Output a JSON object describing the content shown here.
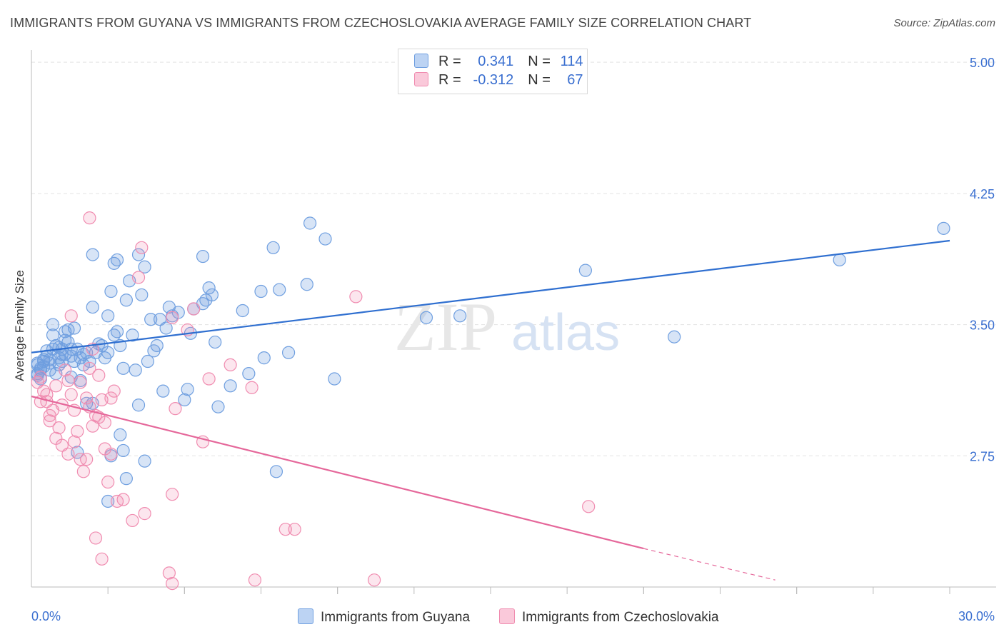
{
  "title": "IMMIGRANTS FROM GUYANA VS IMMIGRANTS FROM CZECHOSLOVAKIA AVERAGE FAMILY SIZE CORRELATION CHART",
  "source": "Source: ZipAtlas.com",
  "legend": {
    "r_label": "R =",
    "n_label": "N =",
    "rows": [
      {
        "r": "0.341",
        "n": "114",
        "color": "#6f9fe0"
      },
      {
        "r": "-0.312",
        "n": "67",
        "color": "#f08cb0"
      }
    ]
  },
  "watermark": {
    "zip": "ZIP",
    "atlas": "atlas"
  },
  "chart_data": {
    "type": "scatter",
    "ylabel": "Average Family Size",
    "x_tick_labels": [
      "0.0%",
      "30.0%"
    ],
    "y_tick_labels": [
      "5.00",
      "4.25",
      "3.50",
      "2.75"
    ],
    "xlim": [
      0,
      30
    ],
    "ylim": [
      2.0,
      5.07
    ],
    "grid": true,
    "series": [
      {
        "name": "Immigrants from Guyana",
        "color": "#6f9fe0",
        "trend": {
          "x": [
            0,
            30
          ],
          "y": [
            3.34,
            3.98
          ]
        },
        "points": [
          [
            0.2,
            3.28
          ],
          [
            0.3,
            3.25
          ],
          [
            0.2,
            3.22
          ],
          [
            0.4,
            3.29
          ],
          [
            0.5,
            3.35
          ],
          [
            0.6,
            3.3
          ],
          [
            0.4,
            3.26
          ],
          [
            0.3,
            3.24
          ],
          [
            0.7,
            3.44
          ],
          [
            0.8,
            3.38
          ],
          [
            0.9,
            3.27
          ],
          [
            1.0,
            3.33
          ],
          [
            1.1,
            3.41
          ],
          [
            1.2,
            3.47
          ],
          [
            1.3,
            3.32
          ],
          [
            1.4,
            3.29
          ],
          [
            0.7,
            3.5
          ],
          [
            0.9,
            3.37
          ],
          [
            1.1,
            3.46
          ],
          [
            1.5,
            3.36
          ],
          [
            1.6,
            3.31
          ],
          [
            1.7,
            3.27
          ],
          [
            1.8,
            3.34
          ],
          [
            0.5,
            3.32
          ],
          [
            0.6,
            3.24
          ],
          [
            0.8,
            3.22
          ],
          [
            1.0,
            3.36
          ],
          [
            1.2,
            3.4
          ],
          [
            1.4,
            3.48
          ],
          [
            1.6,
            3.18
          ],
          [
            1.9,
            3.29
          ],
          [
            2.0,
            3.6
          ],
          [
            2.1,
            3.34
          ],
          [
            2.3,
            3.38
          ],
          [
            2.4,
            3.31
          ],
          [
            2.5,
            3.55
          ],
          [
            2.6,
            3.69
          ],
          [
            2.7,
            3.44
          ],
          [
            2.8,
            3.46
          ],
          [
            2.9,
            3.38
          ],
          [
            3.0,
            3.25
          ],
          [
            3.1,
            3.64
          ],
          [
            3.2,
            3.75
          ],
          [
            3.3,
            3.44
          ],
          [
            3.4,
            3.24
          ],
          [
            3.5,
            3.9
          ],
          [
            3.6,
            3.67
          ],
          [
            3.7,
            3.83
          ],
          [
            3.8,
            3.29
          ],
          [
            3.9,
            3.53
          ],
          [
            4.0,
            3.35
          ],
          [
            4.1,
            3.38
          ],
          [
            4.2,
            3.53
          ],
          [
            4.3,
            3.12
          ],
          [
            4.5,
            3.6
          ],
          [
            4.6,
            3.55
          ],
          [
            4.8,
            3.57
          ],
          [
            5.0,
            3.07
          ],
          [
            5.2,
            3.45
          ],
          [
            5.3,
            3.59
          ],
          [
            5.6,
            3.62
          ],
          [
            5.7,
            3.64
          ],
          [
            5.8,
            3.71
          ],
          [
            5.9,
            3.67
          ],
          [
            2.0,
            3.9
          ],
          [
            2.7,
            3.85
          ],
          [
            2.8,
            3.87
          ],
          [
            5.6,
            3.89
          ],
          [
            6.0,
            3.4
          ],
          [
            6.5,
            3.15
          ],
          [
            6.9,
            3.58
          ],
          [
            7.1,
            3.22
          ],
          [
            7.5,
            3.69
          ],
          [
            7.6,
            3.31
          ],
          [
            7.9,
            3.94
          ],
          [
            8.1,
            3.7
          ],
          [
            8.4,
            3.34
          ],
          [
            9.1,
            4.08
          ],
          [
            9.0,
            3.73
          ],
          [
            9.6,
            3.99
          ],
          [
            9.9,
            3.19
          ],
          [
            14.0,
            3.55
          ],
          [
            12.9,
            3.54
          ],
          [
            18.1,
            3.81
          ],
          [
            21.0,
            3.43
          ],
          [
            26.4,
            3.87
          ],
          [
            29.8,
            4.05
          ],
          [
            1.5,
            2.77
          ],
          [
            2.6,
            2.75
          ],
          [
            2.9,
            2.87
          ],
          [
            3.1,
            2.62
          ],
          [
            3.0,
            2.78
          ],
          [
            3.7,
            2.72
          ],
          [
            2.5,
            2.49
          ],
          [
            8.0,
            2.66
          ],
          [
            6.1,
            3.03
          ],
          [
            2.0,
            3.05
          ],
          [
            2.5,
            3.34
          ],
          [
            3.5,
            3.04
          ],
          [
            1.8,
            3.05
          ],
          [
            0.3,
            3.19
          ],
          [
            0.2,
            3.27
          ],
          [
            1.3,
            3.2
          ],
          [
            0.9,
            3.31
          ],
          [
            1.1,
            3.33
          ],
          [
            0.6,
            3.28
          ],
          [
            1.7,
            3.33
          ],
          [
            2.2,
            3.39
          ],
          [
            4.4,
            3.48
          ],
          [
            5.1,
            3.13
          ],
          [
            0.4,
            3.3
          ],
          [
            0.7,
            3.36
          ],
          [
            0.2,
            3.21
          ],
          [
            1.0,
            3.29
          ],
          [
            1.3,
            3.36
          ]
        ]
      },
      {
        "name": "Immigrants from Czechoslovakia",
        "color": "#f08cb0",
        "trend": {
          "x": [
            0,
            20
          ],
          "y": [
            3.09,
            2.22
          ]
        },
        "trend_dashed": {
          "x": [
            20,
            24.3
          ],
          "y": [
            2.22,
            2.04
          ]
        },
        "points": [
          [
            0.2,
            3.17
          ],
          [
            0.3,
            3.2
          ],
          [
            0.4,
            3.12
          ],
          [
            0.5,
            3.06
          ],
          [
            0.6,
            2.98
          ],
          [
            0.7,
            3.01
          ],
          [
            0.8,
            3.15
          ],
          [
            0.9,
            2.91
          ],
          [
            1.0,
            3.04
          ],
          [
            1.1,
            3.24
          ],
          [
            1.2,
            3.18
          ],
          [
            1.3,
            3.1
          ],
          [
            1.4,
            3.01
          ],
          [
            1.5,
            2.89
          ],
          [
            1.6,
            2.73
          ],
          [
            1.7,
            2.66
          ],
          [
            1.8,
            3.08
          ],
          [
            1.9,
            3.03
          ],
          [
            2.0,
            2.92
          ],
          [
            2.1,
            2.98
          ],
          [
            2.2,
            3.21
          ],
          [
            2.3,
            3.07
          ],
          [
            2.4,
            2.79
          ],
          [
            2.5,
            2.6
          ],
          [
            2.6,
            2.76
          ],
          [
            2.7,
            3.12
          ],
          [
            0.3,
            3.06
          ],
          [
            0.5,
            3.1
          ],
          [
            0.6,
            2.95
          ],
          [
            0.8,
            2.85
          ],
          [
            1.0,
            2.81
          ],
          [
            1.2,
            2.76
          ],
          [
            1.4,
            2.83
          ],
          [
            1.6,
            3.17
          ],
          [
            1.8,
            2.73
          ],
          [
            1.9,
            3.25
          ],
          [
            2.0,
            3.36
          ],
          [
            2.2,
            2.97
          ],
          [
            2.4,
            2.94
          ],
          [
            2.6,
            3.08
          ],
          [
            2.8,
            2.49
          ],
          [
            3.0,
            2.5
          ],
          [
            3.3,
            2.38
          ],
          [
            3.5,
            3.77
          ],
          [
            3.6,
            3.94
          ],
          [
            3.7,
            2.42
          ],
          [
            4.5,
            2.08
          ],
          [
            4.6,
            3.54
          ],
          [
            4.6,
            2.02
          ],
          [
            4.7,
            3.02
          ],
          [
            5.1,
            3.47
          ],
          [
            5.3,
            3.59
          ],
          [
            5.6,
            2.83
          ],
          [
            5.8,
            3.19
          ],
          [
            6.5,
            3.27
          ],
          [
            7.2,
            3.14
          ],
          [
            7.3,
            2.04
          ],
          [
            8.3,
            2.33
          ],
          [
            8.6,
            2.33
          ],
          [
            10.6,
            3.66
          ],
          [
            11.2,
            2.04
          ],
          [
            18.2,
            2.46
          ],
          [
            1.9,
            4.11
          ],
          [
            1.3,
            3.55
          ],
          [
            2.1,
            2.28
          ],
          [
            2.3,
            2.16
          ],
          [
            4.6,
            2.53
          ]
        ]
      }
    ]
  }
}
